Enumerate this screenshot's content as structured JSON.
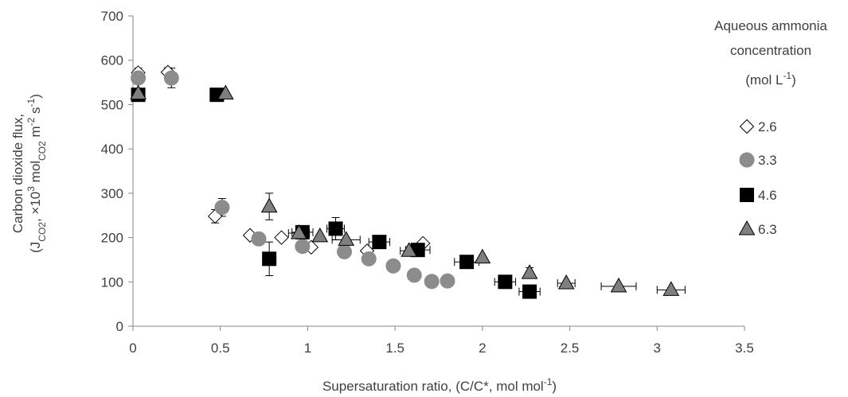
{
  "chart_data": {
    "type": "scatter",
    "xlabel_main": "Supersaturation  ratio, (C/C*, mol mol",
    "xlabel_sup": "-1",
    "xlabel_end": ")",
    "ylabel_line1": "Carbon dioxide flux,",
    "ylabel_line2": {
      "p1": "(J",
      "sub1": "CO2",
      "p2": ", ×10",
      "sup1": "3",
      "p3": " mol",
      "sub2": "CO2",
      "p4": "  m",
      "sup2": "-2",
      "p5": " s",
      "sup3": "-1",
      "p6": ")"
    },
    "xlim": [
      0,
      3.5
    ],
    "ylim": [
      0,
      700
    ],
    "xticks": [
      "0",
      "0.5",
      "1",
      "1.5",
      "2",
      "2.5",
      "3",
      "3.5"
    ],
    "yticks": [
      "0",
      "100",
      "200",
      "300",
      "400",
      "500",
      "600",
      "700"
    ],
    "grid": false,
    "legend": {
      "position": "right",
      "title_line1": "Aqueous ammonia",
      "title_line2": "concentration",
      "title_line3_main": "(mol L",
      "title_line3_sup": "-1",
      "title_line3_end": ")"
    },
    "series": [
      {
        "name": "2.6",
        "marker": "diamond",
        "color": "#ffffff",
        "stroke": "#000000",
        "points": [
          {
            "x": 0.03,
            "y": 572,
            "yerr": 10
          },
          {
            "x": 0.2,
            "y": 573,
            "yerr": 10
          },
          {
            "x": 0.47,
            "y": 248,
            "yerr": 15
          },
          {
            "x": 0.67,
            "y": 205
          },
          {
            "x": 0.85,
            "y": 200
          },
          {
            "x": 1.02,
            "y": 178
          },
          {
            "x": 1.34,
            "y": 170
          },
          {
            "x": 1.66,
            "y": 187
          }
        ]
      },
      {
        "name": "3.3",
        "marker": "circle",
        "color": "#8c8c8c",
        "stroke": "#8c8c8c",
        "points": [
          {
            "x": 0.03,
            "y": 560
          },
          {
            "x": 0.22,
            "y": 560,
            "yerr": 22
          },
          {
            "x": 0.51,
            "y": 268,
            "yerr": 20
          },
          {
            "x": 0.72,
            "y": 197
          },
          {
            "x": 0.97,
            "y": 180
          },
          {
            "x": 1.21,
            "y": 168
          },
          {
            "x": 1.35,
            "y": 152
          },
          {
            "x": 1.49,
            "y": 136
          },
          {
            "x": 1.61,
            "y": 115
          },
          {
            "x": 1.71,
            "y": 101
          },
          {
            "x": 1.8,
            "y": 102
          }
        ]
      },
      {
        "name": "4.6",
        "marker": "square",
        "color": "#000000",
        "stroke": "#000000",
        "points": [
          {
            "x": 0.03,
            "y": 522
          },
          {
            "x": 0.48,
            "y": 522
          },
          {
            "x": 0.78,
            "y": 152,
            "yerr": 38
          },
          {
            "x": 0.97,
            "y": 212,
            "xerr": 0.06
          },
          {
            "x": 1.16,
            "y": 220,
            "yerr": 25,
            "xerr": 0.05
          },
          {
            "x": 1.41,
            "y": 190,
            "xerr": 0.06
          },
          {
            "x": 1.63,
            "y": 172,
            "xerr": 0.07
          },
          {
            "x": 1.91,
            "y": 145,
            "xerr": 0.07
          },
          {
            "x": 2.13,
            "y": 100,
            "xerr": 0.06
          },
          {
            "x": 2.27,
            "y": 78,
            "xerr": 0.06
          }
        ]
      },
      {
        "name": "6.3",
        "marker": "triangle",
        "color": "#7f7f7f",
        "stroke": "#000000",
        "points": [
          {
            "x": 0.03,
            "y": 525
          },
          {
            "x": 0.53,
            "y": 525
          },
          {
            "x": 0.78,
            "y": 270,
            "yerr": 30
          },
          {
            "x": 0.95,
            "y": 210,
            "xerr": 0.06
          },
          {
            "x": 1.07,
            "y": 203
          },
          {
            "x": 1.22,
            "y": 195,
            "xerr": 0.08
          },
          {
            "x": 1.58,
            "y": 170,
            "xerr": 0.05
          },
          {
            "x": 2.0,
            "y": 155
          },
          {
            "x": 2.27,
            "y": 120,
            "yerr": 12
          },
          {
            "x": 2.48,
            "y": 97,
            "xerr": 0.05
          },
          {
            "x": 2.78,
            "y": 90,
            "xerr": 0.1
          },
          {
            "x": 3.08,
            "y": 82,
            "xerr": 0.08
          }
        ]
      }
    ]
  }
}
